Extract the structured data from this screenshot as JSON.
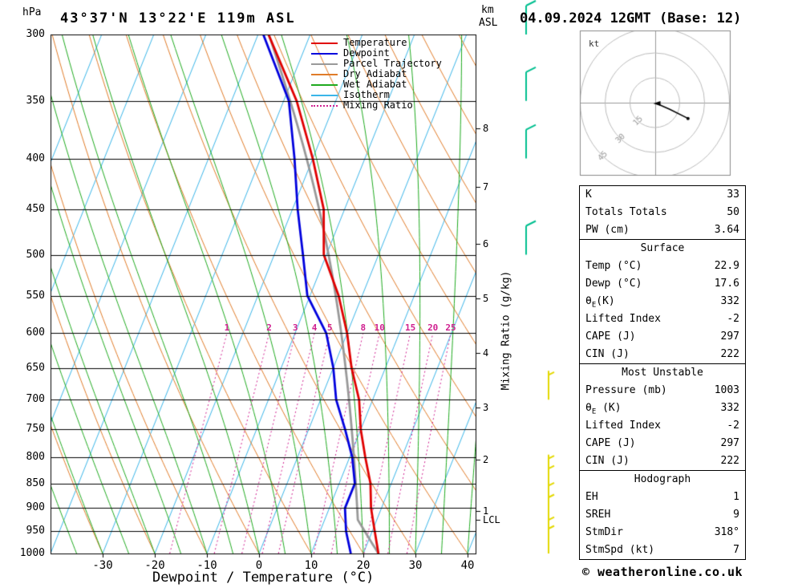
{
  "page": {
    "title_left": "43°37'N 13°22'E 119m ASL",
    "title_right": "04.09.2024 12GMT (Base: 12)",
    "copyright": "© weatheronline.co.uk"
  },
  "axes": {
    "pressure_unit": "hPa",
    "altitude_unit_line1": "km",
    "altitude_unit_line2": "ASL",
    "x_label": "Dewpoint / Temperature (°C)",
    "right_label": "Mixing Ratio (g/kg)",
    "lcl_label": "LCL",
    "pressure_ticks": [
      300,
      350,
      400,
      450,
      500,
      550,
      600,
      650,
      700,
      750,
      800,
      850,
      900,
      950,
      1000
    ],
    "temp_ticks": [
      -30,
      -20,
      -10,
      0,
      10,
      20,
      30,
      40
    ],
    "km_ticks": [
      {
        "km": 1,
        "p": 906
      },
      {
        "km": 2,
        "p": 805
      },
      {
        "km": 3,
        "p": 713
      },
      {
        "km": 4,
        "p": 628
      },
      {
        "km": 5,
        "p": 553
      },
      {
        "km": 6,
        "p": 488
      },
      {
        "km": 7,
        "p": 427
      },
      {
        "km": 8,
        "p": 373
      }
    ]
  },
  "legend": {
    "items": [
      {
        "label": "Temperature",
        "color": "#e00000",
        "style": "solid"
      },
      {
        "label": "Dewpoint",
        "color": "#0000dd",
        "style": "solid"
      },
      {
        "label": "Parcel Trajectory",
        "color": "#999999",
        "style": "solid"
      },
      {
        "label": "Dry Adiabat",
        "color": "#e07b28",
        "style": "solid"
      },
      {
        "label": "Wet Adiabat",
        "color": "#1faa1f",
        "style": "solid"
      },
      {
        "label": "Isotherm",
        "color": "#3ab5e8",
        "style": "solid"
      },
      {
        "label": "Mixing Ratio",
        "color": "#d02090",
        "style": "dotted"
      }
    ]
  },
  "hodograph": {
    "unit_label": "kt",
    "rings": [
      15,
      30,
      45
    ]
  },
  "info_table": {
    "sections": [
      {
        "rows": [
          [
            "K",
            "33"
          ],
          [
            "Totals Totals",
            "50"
          ],
          [
            "PW (cm)",
            "3.64"
          ]
        ]
      },
      {
        "header": "Surface",
        "rows": [
          [
            "Temp (°C)",
            "22.9"
          ],
          [
            "Dewp (°C)",
            "17.6"
          ],
          [
            "θ_E(K)",
            "332"
          ],
          [
            "Lifted Index",
            "-2"
          ],
          [
            "CAPE (J)",
            "297"
          ],
          [
            "CIN (J)",
            "222"
          ]
        ]
      },
      {
        "header": "Most Unstable",
        "rows": [
          [
            "Pressure (mb)",
            "1003"
          ],
          [
            "θ_E (K)",
            "332"
          ],
          [
            "Lifted Index",
            "-2"
          ],
          [
            "CAPE (J)",
            "297"
          ],
          [
            "CIN (J)",
            "222"
          ]
        ]
      },
      {
        "header": "Hodograph",
        "rows": [
          [
            "EH",
            "1"
          ],
          [
            "SREH",
            "9"
          ],
          [
            "StmDir",
            "318°"
          ],
          [
            "StmSpd (kt)",
            "7"
          ]
        ]
      }
    ]
  },
  "chart_data": {
    "type": "skewt_log_p",
    "title": "43°37'N 13°22'E 119m ASL",
    "pressure_range": [
      300,
      1000
    ],
    "temp_range_at_surface": [
      -40,
      41.5
    ],
    "skew_ratio": 0.4,
    "grid_on": true,
    "isotherms": {
      "start": -80,
      "end": 40,
      "step": 10
    },
    "dry_adiabats": {
      "start": -40,
      "end": 130,
      "step": 10
    },
    "wet_adiabats": {
      "start": -40,
      "end": 40,
      "step": 5
    },
    "mixing_ratio_lines": [
      1,
      2,
      3,
      4,
      5,
      8,
      10,
      15,
      20,
      25
    ],
    "lcl_pressure": 925,
    "sounding": {
      "pressure": [
        1000,
        950,
        900,
        850,
        800,
        750,
        700,
        650,
        600,
        550,
        500,
        450,
        400,
        350,
        300
      ],
      "temperature": [
        22.9,
        20.5,
        18.0,
        16.0,
        13.0,
        10.0,
        7.4,
        3.5,
        0.0,
        -4.5,
        -10.5,
        -14.0,
        -20.0,
        -27.5,
        -38.0
      ],
      "dewpoint": [
        17.6,
        15.0,
        13.0,
        13.0,
        10.5,
        7.0,
        3.0,
        0.0,
        -4.0,
        -10.5,
        -14.5,
        -19.0,
        -23.5,
        -29.0,
        -39.0
      ]
    },
    "parcel": {
      "pressure": 1000,
      "temperature": 22.9,
      "dewpoint": 17.6
    },
    "wind_barbs": [
      {
        "p": 300,
        "kt": 10,
        "color": "#00bf8f"
      },
      {
        "p": 350,
        "kt": 10,
        "color": "#00bf8f"
      },
      {
        "p": 400,
        "kt": 10,
        "color": "#00bf8f"
      },
      {
        "p": 500,
        "kt": 10,
        "color": "#00bf8f"
      },
      {
        "p": 700,
        "kt": 5,
        "color": "#e3d800"
      },
      {
        "p": 850,
        "kt": 5,
        "color": "#e3d800"
      },
      {
        "p": 870,
        "kt": 5,
        "color": "#e3d800"
      },
      {
        "p": 905,
        "kt": 5,
        "color": "#e3d800"
      },
      {
        "p": 930,
        "kt": 5,
        "color": "#e3d800"
      },
      {
        "p": 980,
        "kt": 5,
        "color": "#e3d800"
      },
      {
        "p": 1000,
        "kt": 7,
        "color": "#e3d800"
      }
    ],
    "hodograph_trace_kt": [
      [
        1,
        -0.5
      ],
      [
        9,
        -4
      ],
      [
        20,
        -9.5
      ]
    ]
  }
}
